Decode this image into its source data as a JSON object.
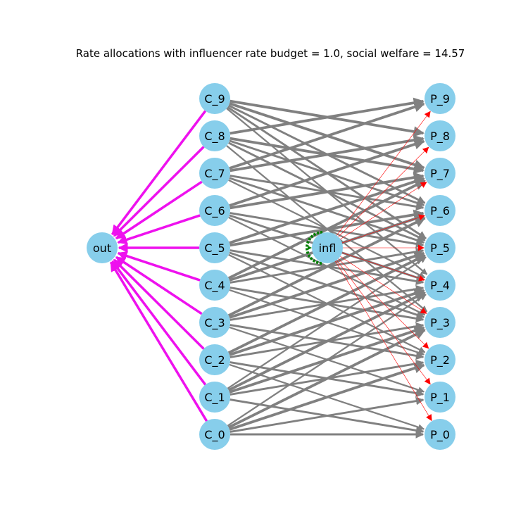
{
  "title": "Rate allocations with influencer rate budget = 1.0, social welfare = 14.57",
  "colors": {
    "node_fill": "#87CEEB",
    "consumer_to_out_edge": "#EE11EE",
    "consumer_to_producer_edge": "#808080",
    "influencer_edge": "#FF0000",
    "influencer_self_loop": "#008000"
  },
  "nodes": {
    "out": {
      "label": "out"
    },
    "infl": {
      "label": "infl"
    },
    "consumers": [
      "C_0",
      "C_1",
      "C_2",
      "C_3",
      "C_4",
      "C_5",
      "C_6",
      "C_7",
      "C_8",
      "C_9"
    ],
    "producers": [
      "P_0",
      "P_1",
      "P_2",
      "P_3",
      "P_4",
      "P_5",
      "P_6",
      "P_7",
      "P_8",
      "P_9"
    ]
  },
  "edges": {
    "consumer_to_out": [
      "C_0",
      "C_1",
      "C_2",
      "C_3",
      "C_4",
      "C_5",
      "C_6",
      "C_7",
      "C_8",
      "C_9"
    ],
    "consumer_to_producer": [
      [
        "C_9",
        "P_8"
      ],
      [
        "C_9",
        "P_7"
      ],
      [
        "C_9",
        "P_6"
      ],
      [
        "C_9",
        "P_5"
      ],
      [
        "C_9",
        "P_4"
      ],
      [
        "C_8",
        "P_9"
      ],
      [
        "C_8",
        "P_7"
      ],
      [
        "C_8",
        "P_6"
      ],
      [
        "C_8",
        "P_5"
      ],
      [
        "C_8",
        "P_3"
      ],
      [
        "C_7",
        "P_9"
      ],
      [
        "C_7",
        "P_8"
      ],
      [
        "C_7",
        "P_6"
      ],
      [
        "C_7",
        "P_5"
      ],
      [
        "C_7",
        "P_4"
      ],
      [
        "C_6",
        "P_8"
      ],
      [
        "C_6",
        "P_7"
      ],
      [
        "C_6",
        "P_5"
      ],
      [
        "C_6",
        "P_4"
      ],
      [
        "C_6",
        "P_3"
      ],
      [
        "C_5",
        "P_7"
      ],
      [
        "C_5",
        "P_6"
      ],
      [
        "C_5",
        "P_4"
      ],
      [
        "C_5",
        "P_3"
      ],
      [
        "C_5",
        "P_2"
      ],
      [
        "C_4",
        "P_7"
      ],
      [
        "C_4",
        "P_6"
      ],
      [
        "C_4",
        "P_5"
      ],
      [
        "C_4",
        "P_3"
      ],
      [
        "C_4",
        "P_2"
      ],
      [
        "C_3",
        "P_6"
      ],
      [
        "C_3",
        "P_5"
      ],
      [
        "C_3",
        "P_4"
      ],
      [
        "C_3",
        "P_2"
      ],
      [
        "C_3",
        "P_1"
      ],
      [
        "C_2",
        "P_5"
      ],
      [
        "C_2",
        "P_4"
      ],
      [
        "C_2",
        "P_3"
      ],
      [
        "C_2",
        "P_1"
      ],
      [
        "C_2",
        "P_0"
      ],
      [
        "C_1",
        "P_4"
      ],
      [
        "C_1",
        "P_3"
      ],
      [
        "C_1",
        "P_2"
      ],
      [
        "C_1",
        "P_0"
      ],
      [
        "C_1",
        "P_5"
      ],
      [
        "C_0",
        "P_3"
      ],
      [
        "C_0",
        "P_2"
      ],
      [
        "C_0",
        "P_1"
      ],
      [
        "C_0",
        "P_0"
      ],
      [
        "C_0",
        "P_4"
      ]
    ],
    "influencer_to_producer": [
      "P_0",
      "P_1",
      "P_2",
      "P_3",
      "P_4",
      "P_5",
      "P_6",
      "P_7",
      "P_8",
      "P_9"
    ]
  }
}
